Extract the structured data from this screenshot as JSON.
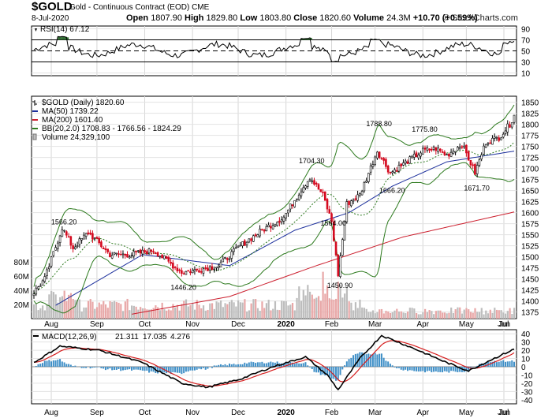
{
  "header": {
    "symbol": "$GOLD",
    "name": "Gold - Continuous Contract (EOD)",
    "exchange": "CME",
    "date": "8-Jul-2020",
    "open_label": "Open",
    "open": "1807.90",
    "high_label": "High",
    "high": "1829.80",
    "low_label": "Low",
    "low": "1803.80",
    "close_label": "Close",
    "close": "1820.60",
    "volume_label": "Volume",
    "volume": "24.3M",
    "change": "+10.70 (+0.59%)",
    "watermark": "© StockCharts.com"
  },
  "rsi_panel": {
    "legend": "RSI(14) 67.12",
    "levels": [
      70,
      50,
      30
    ],
    "axis": [
      90,
      70,
      50,
      30,
      10
    ]
  },
  "price_panel": {
    "legend": [
      {
        "text": "$GOLD (Daily) 1820.60",
        "color": "#000000",
        "marker": "bar"
      },
      {
        "text": "MA(50) 1739.22",
        "color": "#1c2f9c",
        "marker": "line"
      },
      {
        "text": "MA(200) 1601.40",
        "color": "#cc1f2e",
        "marker": "line"
      },
      {
        "text": "BB(20,2.0) 1708.83 - 1766.56 - 1824.29",
        "color": "#2d7a1e",
        "marker": "line"
      },
      {
        "text": "Volume 24,329,100",
        "color": "#888888",
        "marker": "vol"
      }
    ],
    "y_ticks": [
      1850,
      1825,
      1800,
      1775,
      1750,
      1725,
      1700,
      1675,
      1650,
      1625,
      1600,
      1575,
      1550,
      1525,
      1500,
      1475,
      1450,
      1425,
      1400,
      1375
    ],
    "volume_ticks": [
      "80M",
      "60M",
      "40M",
      "20M"
    ],
    "annotations": [
      {
        "text": "1566.20",
        "value": 1566.2,
        "day": 13
      },
      {
        "text": "1446.20",
        "value": 1446.2,
        "day": 68
      },
      {
        "text": "1704.30",
        "value": 1704.3,
        "day": 127
      },
      {
        "text": "1564.00",
        "value": 1564.0,
        "day": 137
      },
      {
        "text": "1450.90",
        "value": 1450.9,
        "day": 140
      },
      {
        "text": "1788.80",
        "value": 1788.8,
        "day": 158
      },
      {
        "text": "1666.20",
        "value": 1666.2,
        "day": 164
      },
      {
        "text": "1775.80",
        "value": 1775.8,
        "day": 179
      },
      {
        "text": "1671.70",
        "value": 1671.7,
        "day": 203
      }
    ]
  },
  "macd_panel": {
    "legend_prefix": "MACD(12,26,9)",
    "macd": "21.311",
    "signal": "17.035",
    "hist": "4.276",
    "axis": [
      40,
      30,
      20,
      10,
      0,
      -10,
      -20,
      -30,
      -40
    ]
  },
  "x_axis": {
    "months": [
      "Aug",
      "Sep",
      "Oct",
      "Nov",
      "Dec",
      "2020",
      "Feb",
      "Mar",
      "Apr",
      "May",
      "Jun",
      "Jul"
    ]
  },
  "colors": {
    "price": "#000000",
    "up_candle": "#000000",
    "down_candle": "#d4091e",
    "ma50": "#1c2f9c",
    "ma200": "#cc1f2e",
    "bb": "#2d7a1e",
    "volume_up": "#bdbdbd",
    "volume_down": "#e8a7a7",
    "macd": "#000000",
    "signal": "#d61d1d",
    "histogram": "#3f8fc7",
    "rsi": "#000000",
    "rsi_fill": "#2f6b30"
  },
  "chart_data": {
    "type": "line",
    "title": "$GOLD Gold - Continuous Contract (EOD)",
    "x_axis_months": [
      "Aug",
      "Sep",
      "Oct",
      "Nov",
      "Dec",
      "2020",
      "Feb",
      "Mar",
      "Apr",
      "May",
      "Jun",
      "Jul"
    ],
    "anchors": {
      "day": [
        0,
        5,
        13,
        18,
        25,
        35,
        45,
        55,
        68,
        75,
        85,
        95,
        105,
        115,
        122,
        127,
        133,
        137,
        140,
        144,
        150,
        158,
        164,
        170,
        179,
        185,
        190,
        197,
        203,
        208,
        214,
        219,
        221
      ],
      "close": [
        1420,
        1450,
        1566,
        1520,
        1555,
        1505,
        1505,
        1515,
        1465,
        1470,
        1480,
        1525,
        1560,
        1590,
        1645,
        1680,
        1640,
        1580,
        1460,
        1620,
        1640,
        1740,
        1690,
        1710,
        1740,
        1745,
        1730,
        1755,
        1690,
        1760,
        1770,
        1800,
        1820.6
      ]
    },
    "series": [
      {
        "name": "MA(50)",
        "anchors_day": [
          10,
          50,
          90,
          120,
          145,
          165,
          190,
          221
        ],
        "values": [
          1390,
          1505,
          1480,
          1560,
          1600,
          1660,
          1715,
          1739.22
        ]
      },
      {
        "name": "MA(200)",
        "anchors_day": [
          45,
          90,
          130,
          170,
          221
        ],
        "values": [
          1370,
          1410,
          1480,
          1545,
          1601.4
        ]
      }
    ],
    "bollinger": {
      "name": "BB(20,2.0)",
      "lower": 1708.83,
      "middle": 1766.56,
      "upper": 1824.29
    },
    "volume_range": [
      0,
      100
    ],
    "rsi_series": {
      "name": "RSI(14)",
      "last": 67.12
    },
    "macd_series": {
      "macd": 21.311,
      "signal": 17.035,
      "histogram": 4.276
    },
    "ylim": [
      1360,
      1860
    ]
  }
}
